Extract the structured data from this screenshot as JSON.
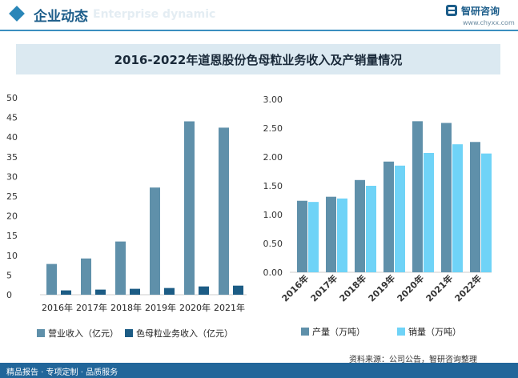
{
  "header": {
    "title": "企业动态",
    "subtitle": "Enterprise dynamic",
    "brand_name": "智研咨询",
    "brand_url": "www.chyxx.com"
  },
  "banner": {
    "title": "2016-2022年道恩股份色母粒业务收入及产销量情况"
  },
  "chart_data": [
    {
      "type": "bar",
      "categories": [
        "2016年",
        "2017年",
        "2018年",
        "2019年",
        "2020年",
        "2021年"
      ],
      "ylim": [
        0,
        50
      ],
      "yticks": [
        "0",
        "5",
        "10",
        "15",
        "20",
        "25",
        "30",
        "35",
        "40",
        "45",
        "50"
      ],
      "series": [
        {
          "name": "营业收入（亿元）",
          "color": "#5f90aa",
          "values": [
            7.8,
            9.2,
            13.5,
            27.2,
            44.0,
            42.4
          ]
        },
        {
          "name": "色母粒业务收入（亿元）",
          "color": "#1c5c85",
          "values": [
            1.1,
            1.3,
            1.5,
            1.7,
            2.1,
            2.3
          ]
        }
      ]
    },
    {
      "type": "bar",
      "categories": [
        "2016年",
        "2017年",
        "2018年",
        "2019年",
        "2020年",
        "2021年",
        "2022年"
      ],
      "ylim": [
        0,
        3
      ],
      "yticks": [
        "0.00",
        "0.50",
        "1.00",
        "1.50",
        "2.00",
        "2.50",
        "3.00"
      ],
      "series": [
        {
          "name": "产量（万吨）",
          "color": "#5f90aa",
          "values": [
            1.24,
            1.31,
            1.6,
            1.92,
            2.62,
            2.59,
            2.26
          ]
        },
        {
          "name": "销量（万吨）",
          "color": "#6fd3f7",
          "values": [
            1.22,
            1.28,
            1.5,
            1.85,
            2.07,
            2.22,
            2.06
          ]
        }
      ]
    }
  ],
  "footer": {
    "left": "精品报告 · 专项定制 · 品质服务",
    "source": "资料来源：公司公告，智研咨询整理"
  }
}
